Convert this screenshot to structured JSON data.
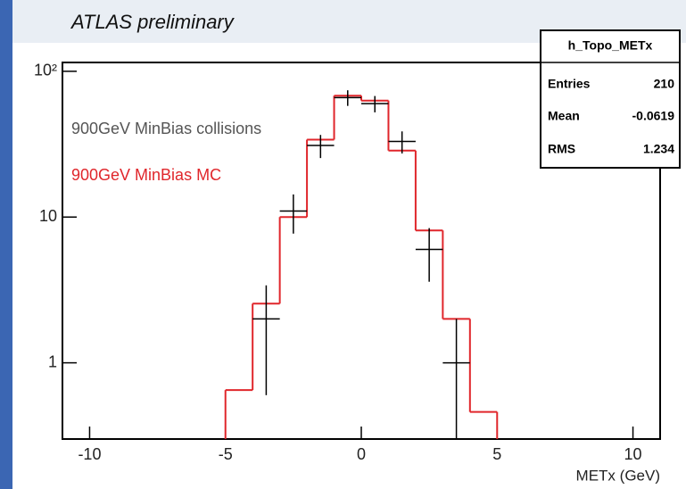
{
  "chart_data": {
    "type": "histogram",
    "title": "ATLAS preliminary",
    "x_label": "METx (GeV)",
    "log_y": true,
    "xlim": [
      -11,
      11
    ],
    "ylim": [
      0.3,
      115
    ],
    "xticks": [
      -10,
      -5,
      0,
      5,
      10
    ],
    "yticks": [
      1,
      10,
      {
        "value": 100,
        "label": "10²"
      }
    ],
    "bins": [
      -5,
      -4,
      -3,
      -2,
      -1,
      0,
      1,
      2,
      3,
      4,
      5
    ],
    "series": [
      {
        "name": "900GeV MinBias MC",
        "color": "#e0262b",
        "values": [
          0.65,
          2.55,
          10,
          34,
          68,
          63,
          28.6,
          8.1,
          2.0,
          0.46
        ]
      }
    ],
    "points": {
      "name": "900GeV MinBias collisions",
      "color": "#000000",
      "x": [
        -3.5,
        -2.5,
        -1.5,
        -0.5,
        0.5,
        1.5,
        2.5,
        3.5
      ],
      "values": [
        2,
        11,
        31,
        66,
        60,
        33,
        6,
        1
      ],
      "errors": [
        1.4,
        3.3,
        5.6,
        8.1,
        7.7,
        5.7,
        2.4,
        1.0
      ]
    },
    "stats": {
      "title": "h_Topo_METx",
      "rows": [
        [
          "Entries",
          210
        ],
        [
          "Mean",
          -0.0619
        ],
        [
          "RMS",
          1.234
        ]
      ]
    }
  }
}
